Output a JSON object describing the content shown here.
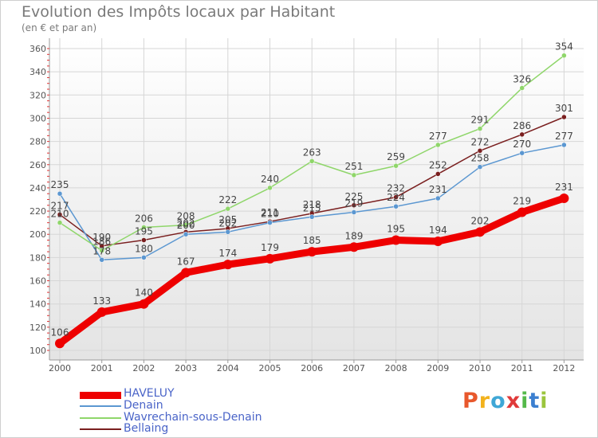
{
  "title": "Evolution des Impôts locaux par Habitant",
  "subtitle": "(en € et par an)",
  "logo": {
    "letters": [
      "P",
      "r",
      "o",
      "x",
      "i",
      "t",
      "i"
    ],
    "colors": [
      "#e8582c",
      "#f2b21c",
      "#3fa7d6",
      "#e03a3a",
      "#54b94a",
      "#3b7fd0",
      "#9bc53d"
    ]
  },
  "chart_data": {
    "type": "line",
    "title": "Evolution des Impôts locaux par Habitant",
    "subtitle": "(en € et par an)",
    "xlabel": "",
    "ylabel": "",
    "x": [
      "2000",
      "2001",
      "2002",
      "2003",
      "2004",
      "2005",
      "2006",
      "2007",
      "2008",
      "2009",
      "2010",
      "2011",
      "2012"
    ],
    "ylim": [
      100,
      360
    ],
    "yticks": [
      100,
      120,
      140,
      160,
      180,
      200,
      220,
      240,
      260,
      280,
      300,
      320,
      340,
      360
    ],
    "grid": true,
    "legend_position": "bottom-left",
    "series": [
      {
        "name": "Bellaing",
        "color": "#7a1f1f",
        "values": [
          217,
          190,
          195,
          202,
          205,
          211,
          218,
          225,
          232,
          252,
          272,
          286,
          301
        ],
        "labels": [
          "217",
          "190",
          "195",
          "202",
          "205",
          "211",
          "218",
          "225",
          "232",
          "252",
          "272",
          "286",
          "301"
        ]
      },
      {
        "name": "Denain",
        "color": "#5b97d1",
        "values": [
          235,
          178,
          180,
          200,
          202,
          210,
          215,
          219,
          224,
          231,
          258,
          270,
          277
        ],
        "labels": [
          "235",
          "178",
          "180",
          "200",
          "202",
          "210",
          "215",
          "219",
          "224",
          "231",
          "258",
          "270",
          "277"
        ]
      },
      {
        "name": "Wavrechain-sous-Denain",
        "color": "#8fd66a",
        "values": [
          210,
          186,
          206,
          208,
          222,
          240,
          263,
          251,
          259,
          277,
          291,
          326,
          354
        ],
        "labels": [
          "210",
          "186",
          "206",
          "208",
          "222",
          "240",
          "263",
          "251",
          "259",
          "277",
          "291",
          "326",
          "354"
        ]
      },
      {
        "name": "HAVELUY",
        "color": "#ee0000",
        "values": [
          106,
          133,
          140,
          167,
          174,
          179,
          185,
          189,
          195,
          194,
          202,
          219,
          231
        ],
        "labels": [
          "106",
          "133",
          "140",
          "167",
          "174",
          "179",
          "185",
          "189",
          "195",
          "194",
          "202",
          "219",
          "231"
        ]
      }
    ]
  },
  "legend": [
    {
      "name": "HAVELUY",
      "color": "#ee0000"
    },
    {
      "name": "Denain",
      "color": "#5b97d1"
    },
    {
      "name": "Wavrechain-sous-Denain",
      "color": "#8fd66a"
    },
    {
      "name": "Bellaing",
      "color": "#7a1f1f"
    }
  ]
}
